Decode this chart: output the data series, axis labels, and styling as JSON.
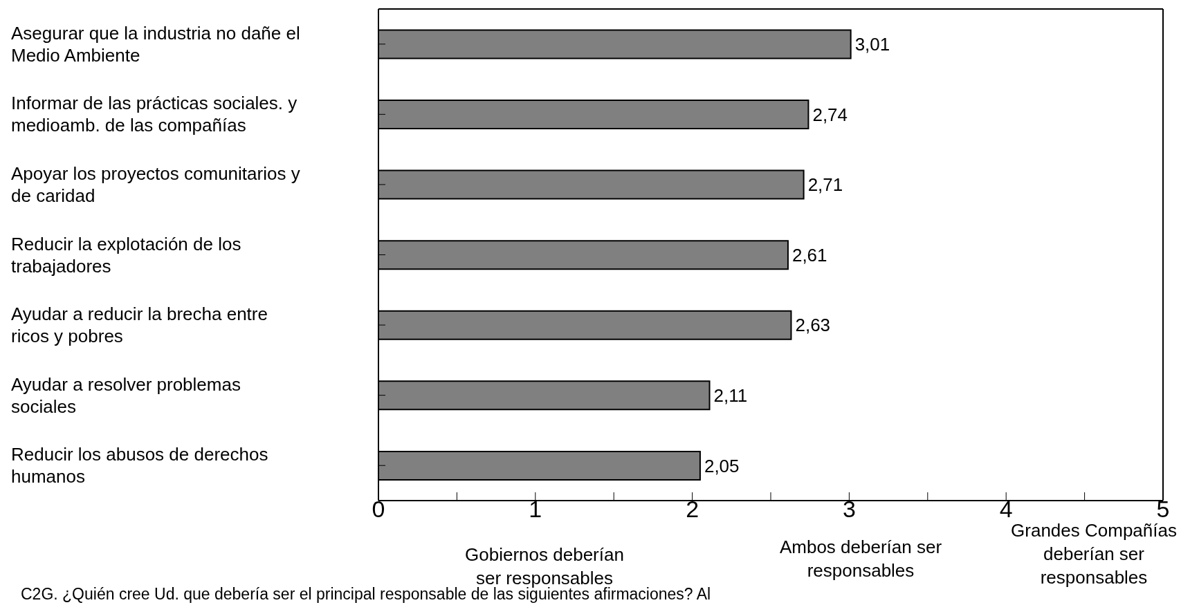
{
  "chart_data": {
    "type": "bar",
    "orientation": "horizontal",
    "categories": [
      "Asegurar que la industria no dañe el\nMedio Ambiente",
      "Informar de las prácticas sociales. y\nmedioamb. de las compañías",
      "Apoyar los proyectos comunitarios y\nde caridad",
      "Reducir la explotación de los\ntrabajadores",
      "Ayudar a reducir la brecha entre\nricos y pobres",
      "Ayudar a resolver problemas\nsociales",
      "Reducir  los abusos de derechos\nhumanos"
    ],
    "values": [
      3.01,
      2.74,
      2.71,
      2.61,
      2.63,
      2.11,
      2.05
    ],
    "value_labels": [
      "3,01",
      "2,74",
      "2,71",
      "2,61",
      "2,63",
      "2,11",
      "2,05"
    ],
    "color": "#808080",
    "xlim": [
      0,
      5
    ],
    "xticks": [
      0,
      {
        "value": 0.5,
        "label": null
      },
      1,
      {
        "value": 1.5,
        "label": null
      },
      2,
      {
        "value": 2.5,
        "label": null
      },
      3,
      {
        "value": 3.5,
        "label": null
      },
      4,
      {
        "value": 4.5,
        "label": null
      },
      5
    ],
    "grid": false,
    "annotations": [
      "Gobiernos deberían\nser responsables",
      "Ambos deberían ser\nresponsables",
      "Grandes Compañías\ndeberían ser\nresponsables",
      "C2G. ¿Quién cree Ud. que debería ser el principal responsable de las siguientes afirmaciones? Al"
    ]
  }
}
